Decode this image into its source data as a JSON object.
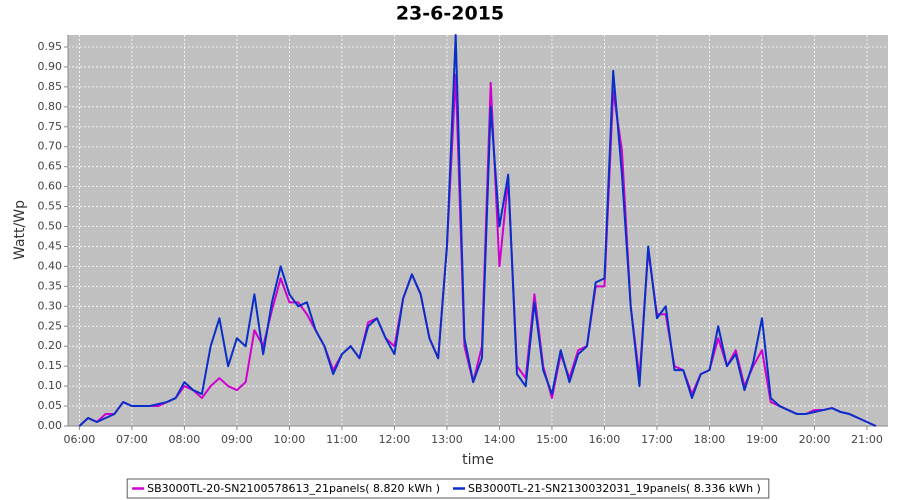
{
  "chart_data": {
    "type": "line",
    "title": "23-6-2015",
    "x_label": "time",
    "y_label": "Watt/Wp",
    "x": [
      "06:00",
      "06:10",
      "06:20",
      "06:30",
      "06:40",
      "06:50",
      "07:00",
      "07:10",
      "07:20",
      "07:30",
      "07:40",
      "07:50",
      "08:00",
      "08:10",
      "08:20",
      "08:30",
      "08:40",
      "08:50",
      "09:00",
      "09:10",
      "09:20",
      "09:30",
      "09:40",
      "09:50",
      "10:00",
      "10:10",
      "10:20",
      "10:30",
      "10:40",
      "10:50",
      "11:00",
      "11:10",
      "11:20",
      "11:30",
      "11:40",
      "11:50",
      "12:00",
      "12:10",
      "12:20",
      "12:30",
      "12:40",
      "12:50",
      "13:00",
      "13:10",
      "13:20",
      "13:30",
      "13:40",
      "13:50",
      "14:00",
      "14:10",
      "14:20",
      "14:30",
      "14:40",
      "14:50",
      "15:00",
      "15:10",
      "15:20",
      "15:30",
      "15:40",
      "15:50",
      "16:00",
      "16:10",
      "16:20",
      "16:30",
      "16:40",
      "16:50",
      "17:00",
      "17:10",
      "17:20",
      "17:30",
      "17:40",
      "17:50",
      "18:00",
      "18:10",
      "18:20",
      "18:30",
      "18:40",
      "18:50",
      "19:00",
      "19:10",
      "19:20",
      "19:30",
      "19:40",
      "19:50",
      "20:00",
      "20:10",
      "20:20",
      "20:30",
      "20:40",
      "20:50",
      "21:00",
      "21:10"
    ],
    "series": [
      {
        "name": "SB3000TL-20-SN2100578613_21panels( 8.820 kWh )",
        "color": "#d000d0",
        "values": [
          0,
          0.02,
          0.01,
          0.03,
          0.03,
          0.06,
          0.05,
          0.05,
          0.05,
          0.05,
          0.06,
          0.07,
          0.1,
          0.09,
          0.07,
          0.1,
          0.12,
          0.1,
          0.09,
          0.11,
          0.24,
          0.2,
          0.29,
          0.37,
          0.31,
          0.31,
          0.28,
          0.24,
          0.2,
          0.14,
          0.18,
          0.2,
          0.17,
          0.26,
          0.27,
          0.22,
          0.2,
          0.32,
          0.38,
          0.33,
          0.22,
          0.17,
          0.45,
          0.88,
          0.2,
          0.11,
          0.2,
          0.86,
          0.4,
          0.62,
          0.15,
          0.12,
          0.33,
          0.15,
          0.07,
          0.18,
          0.12,
          0.19,
          0.2,
          0.35,
          0.35,
          0.84,
          0.69,
          0.3,
          0.12,
          0.44,
          0.28,
          0.28,
          0.15,
          0.14,
          0.08,
          0.13,
          0.14,
          0.22,
          0.15,
          0.19,
          0.1,
          0.15,
          0.19,
          0.06,
          0.05,
          0.04,
          0.03,
          0.03,
          0.04,
          0.04,
          0.045,
          0.035,
          0.03,
          0.02,
          0.01,
          0
        ]
      },
      {
        "name": "SB3000TL-21-SN2130032031_19panels( 8.336 kWh )",
        "color": "#0a2fc8",
        "values": [
          0,
          0.02,
          0.01,
          0.02,
          0.03,
          0.06,
          0.05,
          0.05,
          0.05,
          0.055,
          0.06,
          0.07,
          0.11,
          0.09,
          0.08,
          0.2,
          0.27,
          0.15,
          0.22,
          0.2,
          0.33,
          0.18,
          0.31,
          0.4,
          0.33,
          0.3,
          0.31,
          0.24,
          0.2,
          0.13,
          0.18,
          0.2,
          0.17,
          0.25,
          0.27,
          0.22,
          0.18,
          0.32,
          0.38,
          0.33,
          0.22,
          0.17,
          0.45,
          0.98,
          0.22,
          0.11,
          0.17,
          0.8,
          0.5,
          0.63,
          0.13,
          0.1,
          0.31,
          0.14,
          0.08,
          0.19,
          0.11,
          0.18,
          0.2,
          0.36,
          0.37,
          0.89,
          0.63,
          0.3,
          0.1,
          0.45,
          0.27,
          0.3,
          0.14,
          0.14,
          0.07,
          0.13,
          0.14,
          0.25,
          0.15,
          0.18,
          0.09,
          0.16,
          0.27,
          0.07,
          0.05,
          0.04,
          0.03,
          0.03,
          0.035,
          0.04,
          0.045,
          0.035,
          0.03,
          0.02,
          0.01,
          0
        ]
      }
    ],
    "xlim": [
      "05:47",
      "21:24"
    ],
    "xticks": [
      "06:00",
      "07:00",
      "08:00",
      "09:00",
      "10:00",
      "11:00",
      "12:00",
      "13:00",
      "14:00",
      "15:00",
      "16:00",
      "17:00",
      "18:00",
      "19:00",
      "20:00",
      "21:00"
    ],
    "ylim": [
      0,
      0.98
    ],
    "yticks": [
      {
        "value": 0,
        "label": "0.00"
      },
      0.05,
      {
        "value": 0.1,
        "label": "0.10"
      },
      0.15,
      {
        "value": 0.2,
        "label": "0.20"
      },
      0.25,
      {
        "value": 0.3,
        "label": "0.30"
      },
      0.35,
      {
        "value": 0.4,
        "label": "0.40"
      },
      0.45,
      {
        "value": 0.5,
        "label": "0.50"
      },
      0.55,
      {
        "value": 0.6,
        "label": "0.60"
      },
      0.65,
      {
        "value": 0.7,
        "label": "0.70"
      },
      0.75,
      {
        "value": 0.8,
        "label": "0.80"
      },
      0.85,
      {
        "value": 0.9,
        "label": "0.90"
      },
      0.95
    ],
    "grid": true,
    "legend": "bottom"
  }
}
